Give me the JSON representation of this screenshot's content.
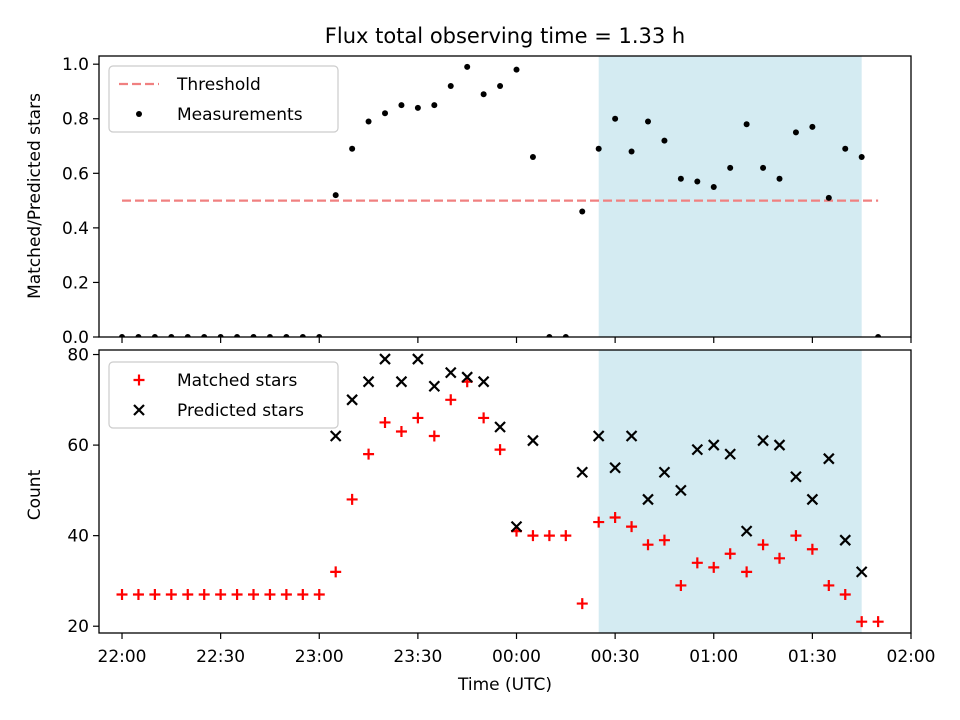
{
  "chart_data": [
    {
      "type": "scatter",
      "title": "Flux total observing time = 1.33 h",
      "xlabel": "",
      "ylabel": "Matched/Predicted stars",
      "ylim": [
        0,
        1.03
      ],
      "yticks": [
        "0.0",
        "0.2",
        "0.4",
        "0.6",
        "0.8",
        "1.0"
      ],
      "legend": "top-left",
      "threshold": {
        "name": "Threshold",
        "value": 0.5,
        "color": "#f08080",
        "style": "dashed"
      },
      "highlight_span": {
        "start": "00:25",
        "end": "01:45",
        "color": "#add8e6"
      },
      "series": [
        {
          "name": "Measurements",
          "color": "#000000",
          "marker": "dot",
          "points": [
            [
              "22:00",
              0.0
            ],
            [
              "22:05",
              0.0
            ],
            [
              "22:10",
              0.0
            ],
            [
              "22:15",
              0.0
            ],
            [
              "22:20",
              0.0
            ],
            [
              "22:25",
              0.0
            ],
            [
              "22:30",
              0.0
            ],
            [
              "22:35",
              0.0
            ],
            [
              "22:40",
              0.0
            ],
            [
              "22:45",
              0.0
            ],
            [
              "22:50",
              0.0
            ],
            [
              "22:55",
              0.0
            ],
            [
              "23:00",
              0.0
            ],
            [
              "23:05",
              0.52
            ],
            [
              "23:10",
              0.69
            ],
            [
              "23:15",
              0.79
            ],
            [
              "23:20",
              0.82
            ],
            [
              "23:25",
              0.85
            ],
            [
              "23:30",
              0.84
            ],
            [
              "23:35",
              0.85
            ],
            [
              "23:40",
              0.92
            ],
            [
              "23:45",
              0.99
            ],
            [
              "23:50",
              0.89
            ],
            [
              "23:55",
              0.92
            ],
            [
              "00:00",
              0.98
            ],
            [
              "00:05",
              0.66
            ],
            [
              "00:10",
              0.0
            ],
            [
              "00:15",
              0.0
            ],
            [
              "00:20",
              0.46
            ],
            [
              "00:25",
              0.69
            ],
            [
              "00:30",
              0.8
            ],
            [
              "00:35",
              0.68
            ],
            [
              "00:40",
              0.79
            ],
            [
              "00:45",
              0.72
            ],
            [
              "00:50",
              0.58
            ],
            [
              "00:55",
              0.57
            ],
            [
              "01:00",
              0.55
            ],
            [
              "01:05",
              0.62
            ],
            [
              "01:10",
              0.78
            ],
            [
              "01:15",
              0.62
            ],
            [
              "01:20",
              0.58
            ],
            [
              "01:25",
              0.75
            ],
            [
              "01:30",
              0.77
            ],
            [
              "01:35",
              0.51
            ],
            [
              "01:40",
              0.69
            ],
            [
              "01:45",
              0.66
            ],
            [
              "01:50",
              0.0
            ]
          ]
        }
      ]
    },
    {
      "type": "scatter",
      "title": "",
      "xlabel": "Time (UTC)",
      "ylabel": "Count",
      "ylim": [
        18.5,
        81
      ],
      "yticks": [
        "20",
        "40",
        "60",
        "80"
      ],
      "xlim": [
        "21:53",
        "02:00"
      ],
      "xticks": [
        "22:00",
        "22:30",
        "23:00",
        "23:30",
        "00:00",
        "00:30",
        "01:00",
        "01:30",
        "02:00"
      ],
      "legend": "top-left",
      "highlight_span": {
        "start": "00:25",
        "end": "01:45",
        "color": "#add8e6"
      },
      "series": [
        {
          "name": "Matched stars",
          "color": "#ff0000",
          "marker": "plus",
          "points": [
            [
              "22:00",
              27
            ],
            [
              "22:05",
              27
            ],
            [
              "22:10",
              27
            ],
            [
              "22:15",
              27
            ],
            [
              "22:20",
              27
            ],
            [
              "22:25",
              27
            ],
            [
              "22:30",
              27
            ],
            [
              "22:35",
              27
            ],
            [
              "22:40",
              27
            ],
            [
              "22:45",
              27
            ],
            [
              "22:50",
              27
            ],
            [
              "22:55",
              27
            ],
            [
              "23:00",
              27
            ],
            [
              "23:05",
              32
            ],
            [
              "23:10",
              48
            ],
            [
              "23:15",
              58
            ],
            [
              "23:20",
              65
            ],
            [
              "23:25",
              63
            ],
            [
              "23:30",
              66
            ],
            [
              "23:35",
              62
            ],
            [
              "23:40",
              70
            ],
            [
              "23:45",
              74
            ],
            [
              "23:50",
              66
            ],
            [
              "23:55",
              59
            ],
            [
              "00:00",
              41
            ],
            [
              "00:05",
              40
            ],
            [
              "00:10",
              40
            ],
            [
              "00:15",
              40
            ],
            [
              "00:20",
              25
            ],
            [
              "00:25",
              43
            ],
            [
              "00:30",
              44
            ],
            [
              "00:35",
              42
            ],
            [
              "00:40",
              38
            ],
            [
              "00:45",
              39
            ],
            [
              "00:50",
              29
            ],
            [
              "00:55",
              34
            ],
            [
              "01:00",
              33
            ],
            [
              "01:05",
              36
            ],
            [
              "01:10",
              32
            ],
            [
              "01:15",
              38
            ],
            [
              "01:20",
              35
            ],
            [
              "01:25",
              40
            ],
            [
              "01:30",
              37
            ],
            [
              "01:35",
              29
            ],
            [
              "01:40",
              27
            ],
            [
              "01:45",
              21
            ],
            [
              "01:50",
              21
            ]
          ]
        },
        {
          "name": "Predicted stars",
          "color": "#000000",
          "marker": "x",
          "points": [
            [
              "23:05",
              62
            ],
            [
              "23:10",
              70
            ],
            [
              "23:15",
              74
            ],
            [
              "23:20",
              79
            ],
            [
              "23:25",
              74
            ],
            [
              "23:30",
              79
            ],
            [
              "23:35",
              73
            ],
            [
              "23:40",
              76
            ],
            [
              "23:45",
              75
            ],
            [
              "23:50",
              74
            ],
            [
              "23:55",
              64
            ],
            [
              "00:00",
              42
            ],
            [
              "00:05",
              61
            ],
            [
              "00:20",
              54
            ],
            [
              "00:25",
              62
            ],
            [
              "00:30",
              55
            ],
            [
              "00:35",
              62
            ],
            [
              "00:40",
              48
            ],
            [
              "00:45",
              54
            ],
            [
              "00:50",
              50
            ],
            [
              "00:55",
              59
            ],
            [
              "01:00",
              60
            ],
            [
              "01:05",
              58
            ],
            [
              "01:10",
              41
            ],
            [
              "01:15",
              61
            ],
            [
              "01:20",
              60
            ],
            [
              "01:25",
              53
            ],
            [
              "01:30",
              48
            ],
            [
              "01:35",
              57
            ],
            [
              "01:40",
              39
            ],
            [
              "01:45",
              32
            ]
          ]
        }
      ]
    }
  ]
}
